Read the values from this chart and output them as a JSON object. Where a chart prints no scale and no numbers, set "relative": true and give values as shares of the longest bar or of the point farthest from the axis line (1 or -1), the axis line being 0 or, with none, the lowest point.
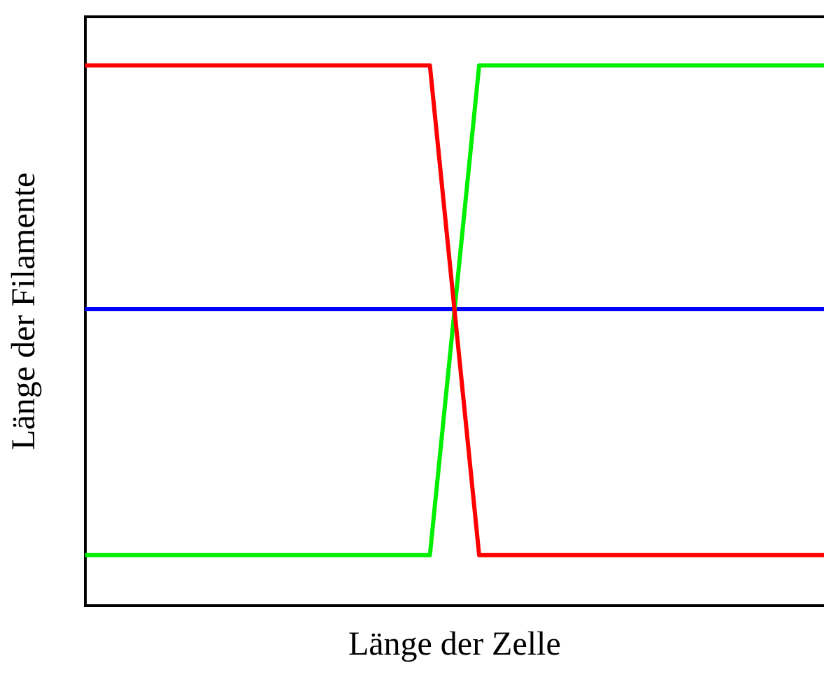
{
  "chart_data": {
    "type": "line",
    "relative": true,
    "xlabel": "Länge der Zelle",
    "ylabel": "Länge der Filamente",
    "legend": false,
    "grid": false,
    "marker": "none",
    "line_style": "solid",
    "categories": [
      null,
      null,
      null,
      null,
      null,
      null,
      null,
      null,
      null,
      null,
      null,
      null,
      null,
      null,
      null,
      null
    ],
    "series": [
      {
        "color": "#ff0000",
        "values": [
          1,
          1,
          1,
          1,
          1,
          1,
          1,
          1,
          0.094,
          0.094,
          0.094,
          0.094,
          0.094,
          0.094,
          0.094,
          0.094
        ]
      },
      {
        "color": "#00ee00",
        "values": [
          0.094,
          0.094,
          0.094,
          0.094,
          0.094,
          0.094,
          0.094,
          0.094,
          1,
          1,
          1,
          1,
          1,
          1,
          1,
          1
        ]
      },
      {
        "color": "#0000ff",
        "values": [
          0.549,
          0.549,
          0.549,
          0.549,
          0.549,
          0.549,
          0.549,
          0.549,
          0.549,
          0.549,
          0.549,
          0.549,
          0.549,
          0.549,
          0.549,
          0.549
        ]
      }
    ]
  }
}
